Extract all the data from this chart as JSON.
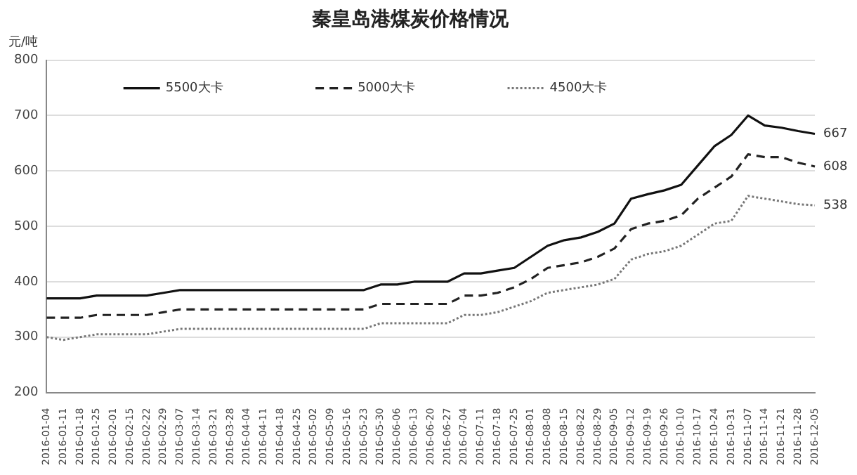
{
  "chart_data": {
    "type": "line",
    "title": "秦皇岛港煤炭价格情况",
    "ylabel": "元/吨",
    "categories": [
      "2016-01-04",
      "2016-01-11",
      "2016-01-18",
      "2016-01-25",
      "2016-02-01",
      "2016-02-15",
      "2016-02-22",
      "2016-02-29",
      "2016-03-07",
      "2016-03-14",
      "2016-03-21",
      "2016-03-28",
      "2016-04-04",
      "2016-04-11",
      "2016-04-18",
      "2016-04-25",
      "2016-05-02",
      "2016-05-09",
      "2016-05-16",
      "2016-05-23",
      "2016-05-30",
      "2016-06-06",
      "2016-06-13",
      "2016-06-20",
      "2016-06-27",
      "2016-07-04",
      "2016-07-11",
      "2016-07-18",
      "2016-07-25",
      "2016-08-01",
      "2016-08-08",
      "2016-08-15",
      "2016-08-22",
      "2016-08-29",
      "2016-09-05",
      "2016-09-12",
      "2016-09-19",
      "2016-09-26",
      "2016-10-10",
      "2016-10-17",
      "2016-10-24",
      "2016-10-31",
      "2016-11-07",
      "2016-11-14",
      "2016-11-21",
      "2016-11-28",
      "2016-12-05"
    ],
    "series": [
      {
        "name": "5500大卡",
        "color": "#111111",
        "line_style": "solid",
        "values": [
          370,
          370,
          370,
          375,
          375,
          375,
          375,
          380,
          385,
          385,
          385,
          385,
          385,
          385,
          385,
          385,
          385,
          385,
          385,
          385,
          395,
          395,
          400,
          400,
          400,
          415,
          415,
          420,
          425,
          445,
          465,
          475,
          480,
          490,
          505,
          550,
          558,
          565,
          575,
          610,
          645,
          665,
          700,
          682,
          678,
          672,
          667
        ],
        "value_labels": [
          null,
          null,
          null,
          null,
          null,
          null,
          null,
          null,
          null,
          null,
          null,
          null,
          null,
          null,
          null,
          null,
          null,
          null,
          null,
          null,
          null,
          null,
          null,
          null,
          null,
          null,
          null,
          null,
          null,
          null,
          null,
          null,
          null,
          null,
          null,
          null,
          null,
          null,
          null,
          null,
          null,
          null,
          null,
          null,
          null,
          null,
          "667"
        ]
      },
      {
        "name": "5000大卡",
        "color": "#222222",
        "line_style": "dashed",
        "values": [
          335,
          335,
          335,
          340,
          340,
          340,
          340,
          345,
          350,
          350,
          350,
          350,
          350,
          350,
          350,
          350,
          350,
          350,
          350,
          350,
          360,
          360,
          360,
          360,
          360,
          375,
          375,
          380,
          390,
          405,
          425,
          430,
          435,
          445,
          460,
          495,
          505,
          510,
          520,
          550,
          570,
          590,
          630,
          625,
          625,
          615,
          608
        ],
        "value_labels": [
          null,
          null,
          null,
          null,
          null,
          null,
          null,
          null,
          null,
          null,
          null,
          null,
          null,
          null,
          null,
          null,
          null,
          null,
          null,
          null,
          null,
          null,
          null,
          null,
          null,
          null,
          null,
          null,
          null,
          null,
          null,
          null,
          null,
          null,
          null,
          null,
          null,
          null,
          null,
          null,
          null,
          null,
          null,
          null,
          null,
          null,
          "608"
        ]
      },
      {
        "name": "4500大卡",
        "color": "#777777",
        "line_style": "dotted",
        "values": [
          300,
          295,
          300,
          305,
          305,
          305,
          305,
          310,
          315,
          315,
          315,
          315,
          315,
          315,
          315,
          315,
          315,
          315,
          315,
          315,
          325,
          325,
          325,
          325,
          325,
          340,
          340,
          345,
          355,
          365,
          380,
          385,
          390,
          395,
          405,
          440,
          450,
          455,
          465,
          485,
          505,
          510,
          555,
          550,
          545,
          540,
          538
        ],
        "value_labels": [
          null,
          null,
          null,
          null,
          null,
          null,
          null,
          null,
          null,
          null,
          null,
          null,
          null,
          null,
          null,
          null,
          null,
          null,
          null,
          null,
          null,
          null,
          null,
          null,
          null,
          null,
          null,
          null,
          null,
          null,
          null,
          null,
          null,
          null,
          null,
          null,
          null,
          null,
          null,
          null,
          null,
          null,
          null,
          null,
          null,
          null,
          "538"
        ]
      }
    ],
    "ylim": [
      200,
      800
    ],
    "yticks": [
      200,
      300,
      400,
      500,
      600,
      700,
      800
    ],
    "grid": "y",
    "legend": "top",
    "marker": "none"
  }
}
